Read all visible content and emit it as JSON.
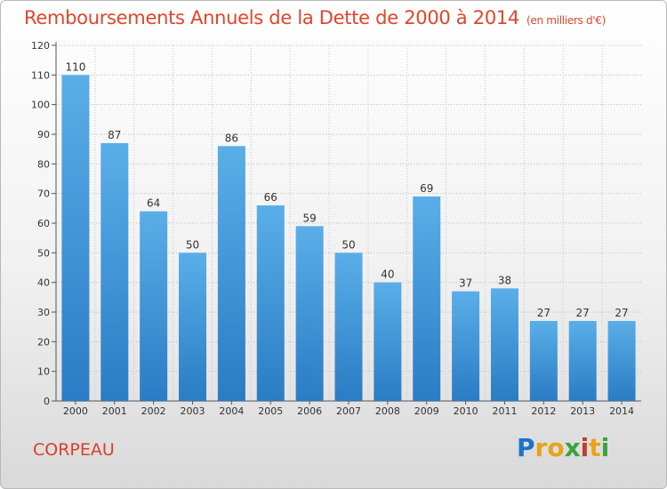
{
  "header": {
    "title": "Remboursements Annuels de la Dette de 2000 à 2014",
    "unit": "(en milliers d'€)"
  },
  "footer": {
    "commune": "CORPEAU",
    "logo": [
      "P",
      "r",
      "o",
      "x",
      "i",
      "t",
      "i"
    ],
    "logo_colors": [
      "#1e73c8",
      "#e8a317",
      "#e8a317",
      "#3aa43a",
      "#c83a2a",
      "#e8a317",
      "#3aa43a"
    ]
  },
  "chart_data": {
    "type": "bar",
    "title": "Remboursements Annuels de la Dette de 2000 à 2014",
    "xlabel": "",
    "ylabel": "",
    "categories": [
      "2000",
      "2001",
      "2002",
      "2003",
      "2004",
      "2005",
      "2006",
      "2007",
      "2008",
      "2009",
      "2010",
      "2011",
      "2012",
      "2013",
      "2014"
    ],
    "values": [
      110,
      87,
      64,
      50,
      86,
      66,
      59,
      50,
      40,
      69,
      37,
      38,
      27,
      27,
      27
    ],
    "ylim": [
      0,
      120
    ],
    "yticks": [
      0,
      10,
      20,
      30,
      40,
      50,
      60,
      70,
      80,
      90,
      100,
      110,
      120
    ],
    "grid": true,
    "bar_color_top": "#5aaee8",
    "bar_color_bottom": "#2a7cc4"
  }
}
